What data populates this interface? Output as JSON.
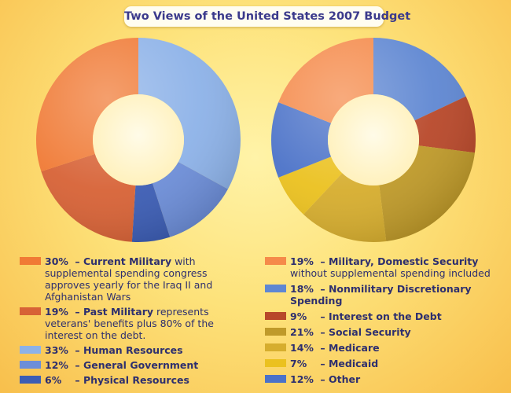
{
  "title": "Two Views of the United States 2007 Budget",
  "chart_data": [
    {
      "type": "donut",
      "slices": [
        {
          "label": "Human Resources",
          "value": 33,
          "pct_text": "33%",
          "color": "#8db2e8",
          "description": ""
        },
        {
          "label": "General Government",
          "value": 12,
          "pct_text": "12%",
          "color": "#6d8ed8",
          "description": ""
        },
        {
          "label": "Physical Resources",
          "value": 6,
          "pct_text": "6%",
          "color": "#3c5db4",
          "description": ""
        },
        {
          "label": "Past Military",
          "value": 19,
          "pct_text": "19%",
          "color": "#d76236",
          "description": "represents veterans' benefits plus 80% of the interest on the debt."
        },
        {
          "label": "Current Military",
          "value": 30,
          "pct_text": "30%",
          "color": "#f07a35",
          "description": "with supplemental spending congress approves yearly for the Iraq II and Afghanistan Wars"
        }
      ]
    },
    {
      "type": "donut",
      "slices": [
        {
          "label": "Nonmilitary Discretionary Spending",
          "value": 18,
          "pct_text": "18%",
          "color": "#5f87d2",
          "description": ""
        },
        {
          "label": "Interest on the Debt",
          "value": 9,
          "pct_text": "9%",
          "color": "#b8482a",
          "description": ""
        },
        {
          "label": "Social Security",
          "value": 21,
          "pct_text": "21%",
          "color": "#bf9a2a",
          "description": ""
        },
        {
          "label": "Medicare",
          "value": 14,
          "pct_text": "14%",
          "color": "#d6ad2e",
          "description": ""
        },
        {
          "label": "Medicaid",
          "value": 7,
          "pct_text": "7%",
          "color": "#ebc11f",
          "description": ""
        },
        {
          "label": "Other",
          "value": 12,
          "pct_text": "12%",
          "color": "#4b72c8",
          "description": ""
        },
        {
          "label": "Military, Domestic Security",
          "value": 19,
          "pct_text": "19%",
          "color": "#f58a4a",
          "description": "without supplemental spending included"
        }
      ]
    }
  ],
  "legend_left": [
    {
      "pct": "30%",
      "label": "Current Military",
      "text": "with supplemental spending congress approves yearly for the Iraq II and Afghanistan Wars",
      "color": "#f07a35"
    },
    {
      "pct": "19%",
      "label": "Past Military",
      "text": "represents veterans' benefits plus 80% of the interest on the debt.",
      "color": "#d76236"
    },
    {
      "pct": "33%",
      "label": "Human Resources",
      "text": "",
      "color": "#8db2e8"
    },
    {
      "pct": "12%",
      "label": "General Government",
      "text": "",
      "color": "#6d8ed8"
    },
    {
      "pct": "6%",
      "label": "Physical Resources",
      "text": "",
      "color": "#3c5db4"
    }
  ],
  "legend_right": [
    {
      "pct": "19%",
      "label": "Military, Domestic Security",
      "text": "without supplemental spending included",
      "color": "#f58a4a"
    },
    {
      "pct": "18%",
      "label": "Nonmilitary Discretionary Spending",
      "text": "",
      "color": "#5f87d2"
    },
    {
      "pct": "9%",
      "label": "Interest on the Debt",
      "text": "",
      "color": "#b8482a"
    },
    {
      "pct": "21%",
      "label": "Social Security",
      "text": "",
      "color": "#bf9a2a"
    },
    {
      "pct": "14%",
      "label": "Medicare",
      "text": "",
      "color": "#d6ad2e"
    },
    {
      "pct": "7%",
      "label": "Medicaid",
      "text": "",
      "color": "#ebc11f"
    },
    {
      "pct": "12%",
      "label": "Other",
      "text": "",
      "color": "#4b72c8"
    }
  ]
}
